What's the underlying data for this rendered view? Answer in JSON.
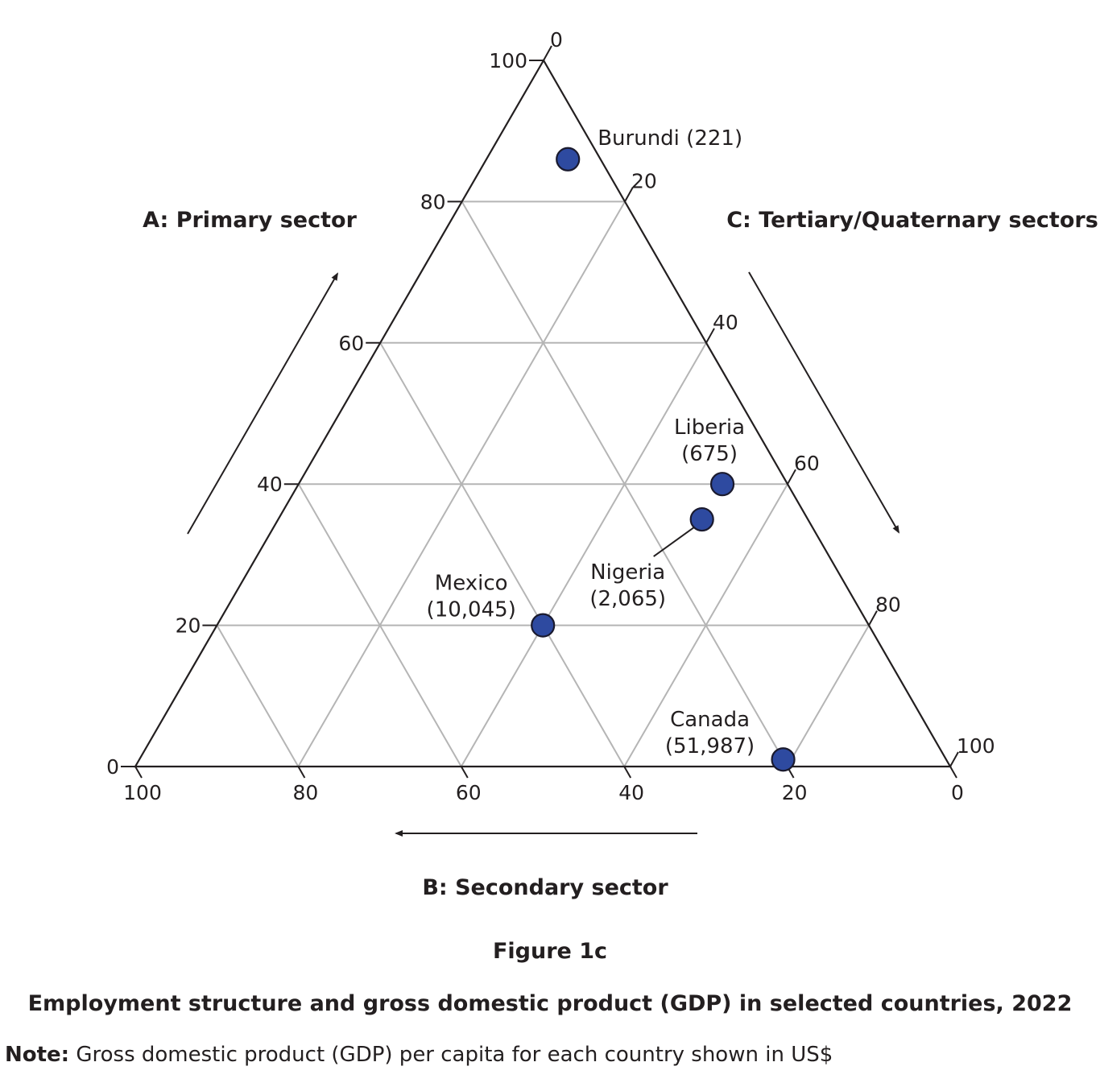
{
  "chart_data": {
    "type": "ternary-scatter",
    "title": "Figure 1c",
    "subtitle": "Employment structure and gross domestic product (GDP) in selected countries, 2022",
    "note_label": "Note:",
    "note_text": " Gross domestic product (GDP) per capita for each country shown in US$",
    "axes": {
      "a": {
        "label": "A: Primary sector",
        "ticks": [
          0,
          20,
          40,
          60,
          80,
          100
        ],
        "range": [
          0,
          100
        ]
      },
      "b": {
        "label": "B: Secondary sector",
        "ticks": [
          100,
          80,
          60,
          40,
          20,
          0
        ],
        "range": [
          0,
          100
        ]
      },
      "c": {
        "label": "C: Tertiary/Quaternary sectors",
        "ticks": [
          0,
          20,
          40,
          60,
          80,
          100
        ],
        "range": [
          0,
          100
        ]
      }
    },
    "grid": true,
    "point_color": "#2e4aa0",
    "points": [
      {
        "name": "Burundi",
        "gdp": "221",
        "a": 86,
        "b": 4,
        "c": 10
      },
      {
        "name": "Liberia",
        "gdp": "675",
        "a": 40,
        "b": 8,
        "c": 52
      },
      {
        "name": "Nigeria",
        "gdp": "2,065",
        "a": 35,
        "b": 13,
        "c": 52
      },
      {
        "name": "Mexico",
        "gdp": "10,045",
        "a": 20,
        "b": 40,
        "c": 40
      },
      {
        "name": "Canada",
        "gdp": "51,987",
        "a": 1,
        "b": 20,
        "c": 79
      }
    ]
  }
}
